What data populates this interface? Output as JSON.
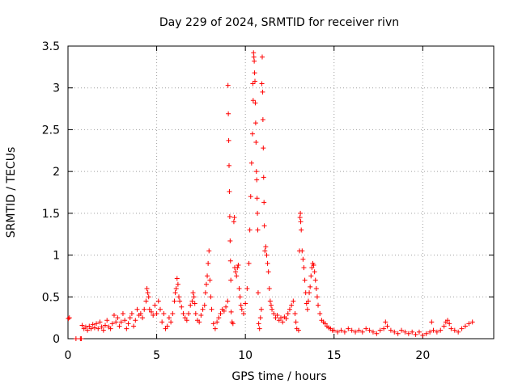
{
  "chart_data": {
    "type": "scatter",
    "title": "Day 229 of 2024, SRMTID for receiver rivn",
    "xlabel": "GPS time / hours",
    "ylabel": "SRMTID / TECUs",
    "xlim": [
      0,
      24
    ],
    "ylim": [
      0,
      3.5
    ],
    "xticks": [
      0,
      5,
      10,
      15,
      20
    ],
    "yticks": [
      0,
      0.5,
      1,
      1.5,
      2,
      2.5,
      3,
      3.5
    ],
    "grid": true,
    "marker": "+",
    "series": [
      {
        "name": "SRMTID",
        "color": "#ff0000",
        "points": [
          [
            0.02,
            0.24
          ],
          [
            0.08,
            0.25
          ],
          [
            0.45,
            -0.01
          ],
          [
            0.7,
            0.0
          ],
          [
            0.75,
            0.0
          ],
          [
            0.8,
            0.16
          ],
          [
            0.9,
            0.12
          ],
          [
            1.0,
            0.14
          ],
          [
            1.1,
            0.1
          ],
          [
            1.2,
            0.15
          ],
          [
            1.3,
            0.12
          ],
          [
            1.4,
            0.17
          ],
          [
            1.5,
            0.13
          ],
          [
            1.6,
            0.18
          ],
          [
            1.7,
            0.12
          ],
          [
            1.8,
            0.2
          ],
          [
            1.9,
            0.14
          ],
          [
            2.0,
            0.1
          ],
          [
            2.1,
            0.16
          ],
          [
            2.2,
            0.22
          ],
          [
            2.3,
            0.14
          ],
          [
            2.4,
            0.12
          ],
          [
            2.5,
            0.18
          ],
          [
            2.6,
            0.28
          ],
          [
            2.7,
            0.2
          ],
          [
            2.8,
            0.25
          ],
          [
            2.9,
            0.15
          ],
          [
            3.0,
            0.2
          ],
          [
            3.1,
            0.3
          ],
          [
            3.2,
            0.22
          ],
          [
            3.3,
            0.12
          ],
          [
            3.4,
            0.18
          ],
          [
            3.5,
            0.25
          ],
          [
            3.6,
            0.3
          ],
          [
            3.7,
            0.15
          ],
          [
            3.8,
            0.22
          ],
          [
            3.9,
            0.35
          ],
          [
            4.0,
            0.28
          ],
          [
            4.1,
            0.3
          ],
          [
            4.2,
            0.25
          ],
          [
            4.3,
            0.35
          ],
          [
            4.4,
            0.45
          ],
          [
            4.45,
            0.6
          ],
          [
            4.5,
            0.55
          ],
          [
            4.55,
            0.5
          ],
          [
            4.6,
            0.35
          ],
          [
            4.7,
            0.32
          ],
          [
            4.8,
            0.28
          ],
          [
            4.9,
            0.4
          ],
          [
            5.0,
            0.3
          ],
          [
            5.1,
            0.45
          ],
          [
            5.2,
            0.35
          ],
          [
            5.3,
            0.2
          ],
          [
            5.4,
            0.3
          ],
          [
            5.5,
            0.12
          ],
          [
            5.6,
            0.15
          ],
          [
            5.7,
            0.25
          ],
          [
            5.8,
            0.2
          ],
          [
            5.9,
            0.3
          ],
          [
            6.0,
            0.45
          ],
          [
            6.05,
            0.55
          ],
          [
            6.1,
            0.6
          ],
          [
            6.15,
            0.72
          ],
          [
            6.2,
            0.65
          ],
          [
            6.25,
            0.5
          ],
          [
            6.3,
            0.45
          ],
          [
            6.4,
            0.38
          ],
          [
            6.5,
            0.3
          ],
          [
            6.6,
            0.25
          ],
          [
            6.7,
            0.22
          ],
          [
            6.8,
            0.3
          ],
          [
            6.9,
            0.4
          ],
          [
            7.0,
            0.45
          ],
          [
            7.05,
            0.55
          ],
          [
            7.1,
            0.5
          ],
          [
            7.15,
            0.42
          ],
          [
            7.2,
            0.3
          ],
          [
            7.3,
            0.22
          ],
          [
            7.4,
            0.2
          ],
          [
            7.5,
            0.28
          ],
          [
            7.6,
            0.35
          ],
          [
            7.7,
            0.4
          ],
          [
            7.75,
            0.55
          ],
          [
            7.8,
            0.65
          ],
          [
            7.85,
            0.75
          ],
          [
            7.9,
            0.9
          ],
          [
            7.95,
            1.05
          ],
          [
            8.0,
            0.7
          ],
          [
            8.05,
            0.5
          ],
          [
            8.1,
            0.35
          ],
          [
            8.2,
            0.18
          ],
          [
            8.3,
            0.12
          ],
          [
            8.4,
            0.2
          ],
          [
            8.5,
            0.25
          ],
          [
            8.6,
            0.3
          ],
          [
            8.7,
            0.35
          ],
          [
            8.8,
            0.33
          ],
          [
            8.9,
            0.38
          ],
          [
            9.0,
            0.45
          ],
          [
            9.02,
            3.03
          ],
          [
            9.04,
            2.69
          ],
          [
            9.06,
            2.37
          ],
          [
            9.08,
            2.07
          ],
          [
            9.1,
            1.76
          ],
          [
            9.12,
            1.46
          ],
          [
            9.14,
            1.17
          ],
          [
            9.16,
            0.93
          ],
          [
            9.18,
            0.7
          ],
          [
            9.2,
            0.32
          ],
          [
            9.25,
            0.2
          ],
          [
            9.3,
            0.18
          ],
          [
            9.35,
            1.4
          ],
          [
            9.38,
            1.45
          ],
          [
            9.4,
            0.85
          ],
          [
            9.45,
            0.8
          ],
          [
            9.5,
            0.75
          ],
          [
            9.55,
            0.85
          ],
          [
            9.6,
            0.88
          ],
          [
            9.65,
            0.6
          ],
          [
            9.7,
            0.5
          ],
          [
            9.75,
            0.4
          ],
          [
            9.8,
            0.35
          ],
          [
            9.9,
            0.3
          ],
          [
            10.0,
            0.42
          ],
          [
            10.1,
            0.6
          ],
          [
            10.2,
            0.9
          ],
          [
            10.25,
            1.3
          ],
          [
            10.3,
            1.7
          ],
          [
            10.35,
            2.1
          ],
          [
            10.4,
            2.45
          ],
          [
            10.42,
            3.05
          ],
          [
            10.44,
            2.85
          ],
          [
            10.46,
            3.42
          ],
          [
            10.48,
            3.37
          ],
          [
            10.5,
            3.32
          ],
          [
            10.52,
            3.18
          ],
          [
            10.54,
            3.08
          ],
          [
            10.56,
            2.82
          ],
          [
            10.58,
            2.58
          ],
          [
            10.6,
            2.35
          ],
          [
            10.62,
            2.0
          ],
          [
            10.64,
            1.9
          ],
          [
            10.66,
            1.68
          ],
          [
            10.68,
            1.5
          ],
          [
            10.7,
            1.3
          ],
          [
            10.72,
            0.55
          ],
          [
            10.75,
            0.18
          ],
          [
            10.8,
            0.12
          ],
          [
            10.85,
            0.25
          ],
          [
            10.9,
            0.35
          ],
          [
            10.93,
            3.05
          ],
          [
            10.95,
            3.37
          ],
          [
            10.97,
            2.95
          ],
          [
            10.99,
            2.62
          ],
          [
            11.01,
            2.28
          ],
          [
            11.03,
            1.93
          ],
          [
            11.05,
            1.63
          ],
          [
            11.07,
            1.35
          ],
          [
            11.1,
            1.05
          ],
          [
            11.15,
            1.1
          ],
          [
            11.2,
            1.0
          ],
          [
            11.25,
            0.9
          ],
          [
            11.3,
            0.8
          ],
          [
            11.35,
            0.6
          ],
          [
            11.4,
            0.45
          ],
          [
            11.45,
            0.4
          ],
          [
            11.5,
            0.35
          ],
          [
            11.6,
            0.3
          ],
          [
            11.7,
            0.25
          ],
          [
            11.8,
            0.28
          ],
          [
            11.9,
            0.22
          ],
          [
            12.0,
            0.25
          ],
          [
            12.1,
            0.2
          ],
          [
            12.2,
            0.26
          ],
          [
            12.3,
            0.24
          ],
          [
            12.4,
            0.3
          ],
          [
            12.5,
            0.35
          ],
          [
            12.6,
            0.4
          ],
          [
            12.7,
            0.45
          ],
          [
            12.8,
            0.3
          ],
          [
            12.85,
            0.2
          ],
          [
            12.9,
            0.12
          ],
          [
            13.0,
            0.1
          ],
          [
            13.05,
            1.05
          ],
          [
            13.08,
            1.45
          ],
          [
            13.1,
            1.5
          ],
          [
            13.12,
            1.4
          ],
          [
            13.15,
            1.3
          ],
          [
            13.2,
            1.05
          ],
          [
            13.25,
            0.95
          ],
          [
            13.3,
            0.85
          ],
          [
            13.35,
            0.7
          ],
          [
            13.4,
            0.55
          ],
          [
            13.45,
            0.42
          ],
          [
            13.5,
            0.35
          ],
          [
            13.55,
            0.45
          ],
          [
            13.6,
            0.55
          ],
          [
            13.65,
            0.62
          ],
          [
            13.7,
            0.75
          ],
          [
            13.75,
            0.85
          ],
          [
            13.8,
            0.9
          ],
          [
            13.85,
            0.88
          ],
          [
            13.9,
            0.8
          ],
          [
            13.95,
            0.7
          ],
          [
            14.0,
            0.6
          ],
          [
            14.05,
            0.5
          ],
          [
            14.1,
            0.4
          ],
          [
            14.2,
            0.3
          ],
          [
            14.3,
            0.22
          ],
          [
            14.4,
            0.2
          ],
          [
            14.5,
            0.18
          ],
          [
            14.6,
            0.15
          ],
          [
            14.7,
            0.13
          ],
          [
            14.8,
            0.12
          ],
          [
            14.9,
            0.1
          ],
          [
            15.0,
            0.1
          ],
          [
            15.2,
            0.08
          ],
          [
            15.4,
            0.1
          ],
          [
            15.6,
            0.08
          ],
          [
            15.8,
            0.12
          ],
          [
            16.0,
            0.1
          ],
          [
            16.2,
            0.08
          ],
          [
            16.4,
            0.1
          ],
          [
            16.6,
            0.08
          ],
          [
            16.8,
            0.12
          ],
          [
            17.0,
            0.1
          ],
          [
            17.2,
            0.08
          ],
          [
            17.4,
            0.06
          ],
          [
            17.6,
            0.1
          ],
          [
            17.8,
            0.12
          ],
          [
            17.9,
            0.2
          ],
          [
            18.0,
            0.15
          ],
          [
            18.2,
            0.1
          ],
          [
            18.4,
            0.08
          ],
          [
            18.6,
            0.06
          ],
          [
            18.8,
            0.1
          ],
          [
            19.0,
            0.08
          ],
          [
            19.2,
            0.06
          ],
          [
            19.4,
            0.08
          ],
          [
            19.6,
            0.05
          ],
          [
            19.8,
            0.08
          ],
          [
            20.0,
            0.04
          ],
          [
            20.2,
            0.06
          ],
          [
            20.4,
            0.08
          ],
          [
            20.5,
            0.2
          ],
          [
            20.6,
            0.1
          ],
          [
            20.8,
            0.08
          ],
          [
            21.0,
            0.1
          ],
          [
            21.2,
            0.15
          ],
          [
            21.3,
            0.2
          ],
          [
            21.4,
            0.22
          ],
          [
            21.5,
            0.18
          ],
          [
            21.6,
            0.12
          ],
          [
            21.8,
            0.1
          ],
          [
            22.0,
            0.08
          ],
          [
            22.2,
            0.12
          ],
          [
            22.4,
            0.15
          ],
          [
            22.6,
            0.18
          ],
          [
            22.8,
            0.2
          ]
        ]
      }
    ]
  }
}
